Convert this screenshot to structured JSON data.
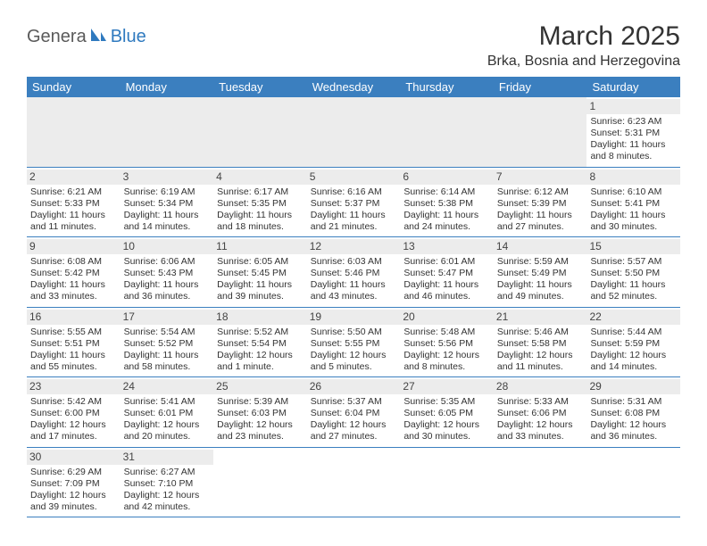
{
  "logo": {
    "part1": "Genera",
    "part2": "Blue"
  },
  "title": "March 2025",
  "location": "Brka, Bosnia and Herzegovina",
  "colors": {
    "header_bg": "#3b7fbf",
    "header_text": "#ffffff",
    "daynum_bg": "#ececec",
    "border": "#3b7fbf",
    "text": "#333333",
    "logo_gray": "#5a5a5a",
    "logo_blue": "#2f7abf"
  },
  "day_names": [
    "Sunday",
    "Monday",
    "Tuesday",
    "Wednesday",
    "Thursday",
    "Friday",
    "Saturday"
  ],
  "weeks": [
    [
      null,
      null,
      null,
      null,
      null,
      null,
      {
        "n": "1",
        "sr": "Sunrise: 6:23 AM",
        "ss": "Sunset: 5:31 PM",
        "d1": "Daylight: 11 hours",
        "d2": "and 8 minutes."
      }
    ],
    [
      {
        "n": "2",
        "sr": "Sunrise: 6:21 AM",
        "ss": "Sunset: 5:33 PM",
        "d1": "Daylight: 11 hours",
        "d2": "and 11 minutes."
      },
      {
        "n": "3",
        "sr": "Sunrise: 6:19 AM",
        "ss": "Sunset: 5:34 PM",
        "d1": "Daylight: 11 hours",
        "d2": "and 14 minutes."
      },
      {
        "n": "4",
        "sr": "Sunrise: 6:17 AM",
        "ss": "Sunset: 5:35 PM",
        "d1": "Daylight: 11 hours",
        "d2": "and 18 minutes."
      },
      {
        "n": "5",
        "sr": "Sunrise: 6:16 AM",
        "ss": "Sunset: 5:37 PM",
        "d1": "Daylight: 11 hours",
        "d2": "and 21 minutes."
      },
      {
        "n": "6",
        "sr": "Sunrise: 6:14 AM",
        "ss": "Sunset: 5:38 PM",
        "d1": "Daylight: 11 hours",
        "d2": "and 24 minutes."
      },
      {
        "n": "7",
        "sr": "Sunrise: 6:12 AM",
        "ss": "Sunset: 5:39 PM",
        "d1": "Daylight: 11 hours",
        "d2": "and 27 minutes."
      },
      {
        "n": "8",
        "sr": "Sunrise: 6:10 AM",
        "ss": "Sunset: 5:41 PM",
        "d1": "Daylight: 11 hours",
        "d2": "and 30 minutes."
      }
    ],
    [
      {
        "n": "9",
        "sr": "Sunrise: 6:08 AM",
        "ss": "Sunset: 5:42 PM",
        "d1": "Daylight: 11 hours",
        "d2": "and 33 minutes."
      },
      {
        "n": "10",
        "sr": "Sunrise: 6:06 AM",
        "ss": "Sunset: 5:43 PM",
        "d1": "Daylight: 11 hours",
        "d2": "and 36 minutes."
      },
      {
        "n": "11",
        "sr": "Sunrise: 6:05 AM",
        "ss": "Sunset: 5:45 PM",
        "d1": "Daylight: 11 hours",
        "d2": "and 39 minutes."
      },
      {
        "n": "12",
        "sr": "Sunrise: 6:03 AM",
        "ss": "Sunset: 5:46 PM",
        "d1": "Daylight: 11 hours",
        "d2": "and 43 minutes."
      },
      {
        "n": "13",
        "sr": "Sunrise: 6:01 AM",
        "ss": "Sunset: 5:47 PM",
        "d1": "Daylight: 11 hours",
        "d2": "and 46 minutes."
      },
      {
        "n": "14",
        "sr": "Sunrise: 5:59 AM",
        "ss": "Sunset: 5:49 PM",
        "d1": "Daylight: 11 hours",
        "d2": "and 49 minutes."
      },
      {
        "n": "15",
        "sr": "Sunrise: 5:57 AM",
        "ss": "Sunset: 5:50 PM",
        "d1": "Daylight: 11 hours",
        "d2": "and 52 minutes."
      }
    ],
    [
      {
        "n": "16",
        "sr": "Sunrise: 5:55 AM",
        "ss": "Sunset: 5:51 PM",
        "d1": "Daylight: 11 hours",
        "d2": "and 55 minutes."
      },
      {
        "n": "17",
        "sr": "Sunrise: 5:54 AM",
        "ss": "Sunset: 5:52 PM",
        "d1": "Daylight: 11 hours",
        "d2": "and 58 minutes."
      },
      {
        "n": "18",
        "sr": "Sunrise: 5:52 AM",
        "ss": "Sunset: 5:54 PM",
        "d1": "Daylight: 12 hours",
        "d2": "and 1 minute."
      },
      {
        "n": "19",
        "sr": "Sunrise: 5:50 AM",
        "ss": "Sunset: 5:55 PM",
        "d1": "Daylight: 12 hours",
        "d2": "and 5 minutes."
      },
      {
        "n": "20",
        "sr": "Sunrise: 5:48 AM",
        "ss": "Sunset: 5:56 PM",
        "d1": "Daylight: 12 hours",
        "d2": "and 8 minutes."
      },
      {
        "n": "21",
        "sr": "Sunrise: 5:46 AM",
        "ss": "Sunset: 5:58 PM",
        "d1": "Daylight: 12 hours",
        "d2": "and 11 minutes."
      },
      {
        "n": "22",
        "sr": "Sunrise: 5:44 AM",
        "ss": "Sunset: 5:59 PM",
        "d1": "Daylight: 12 hours",
        "d2": "and 14 minutes."
      }
    ],
    [
      {
        "n": "23",
        "sr": "Sunrise: 5:42 AM",
        "ss": "Sunset: 6:00 PM",
        "d1": "Daylight: 12 hours",
        "d2": "and 17 minutes."
      },
      {
        "n": "24",
        "sr": "Sunrise: 5:41 AM",
        "ss": "Sunset: 6:01 PM",
        "d1": "Daylight: 12 hours",
        "d2": "and 20 minutes."
      },
      {
        "n": "25",
        "sr": "Sunrise: 5:39 AM",
        "ss": "Sunset: 6:03 PM",
        "d1": "Daylight: 12 hours",
        "d2": "and 23 minutes."
      },
      {
        "n": "26",
        "sr": "Sunrise: 5:37 AM",
        "ss": "Sunset: 6:04 PM",
        "d1": "Daylight: 12 hours",
        "d2": "and 27 minutes."
      },
      {
        "n": "27",
        "sr": "Sunrise: 5:35 AM",
        "ss": "Sunset: 6:05 PM",
        "d1": "Daylight: 12 hours",
        "d2": "and 30 minutes."
      },
      {
        "n": "28",
        "sr": "Sunrise: 5:33 AM",
        "ss": "Sunset: 6:06 PM",
        "d1": "Daylight: 12 hours",
        "d2": "and 33 minutes."
      },
      {
        "n": "29",
        "sr": "Sunrise: 5:31 AM",
        "ss": "Sunset: 6:08 PM",
        "d1": "Daylight: 12 hours",
        "d2": "and 36 minutes."
      }
    ],
    [
      {
        "n": "30",
        "sr": "Sunrise: 6:29 AM",
        "ss": "Sunset: 7:09 PM",
        "d1": "Daylight: 12 hours",
        "d2": "and 39 minutes."
      },
      {
        "n": "31",
        "sr": "Sunrise: 6:27 AM",
        "ss": "Sunset: 7:10 PM",
        "d1": "Daylight: 12 hours",
        "d2": "and 42 minutes."
      },
      null,
      null,
      null,
      null,
      null
    ]
  ]
}
